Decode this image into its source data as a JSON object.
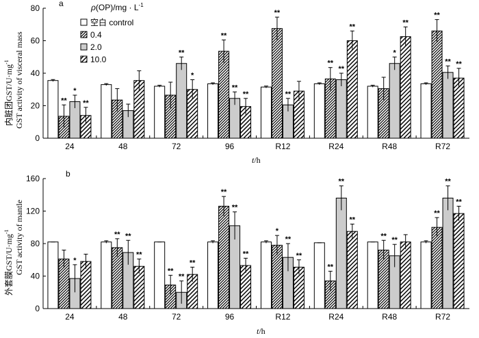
{
  "chart_data": [
    {
      "type": "bar",
      "panel_label": "a",
      "ylabel_cn": "内脏团GST/U·mg",
      "ylabel_cn_sup": "-1",
      "ylabel_en": "GST activity of visceral mass",
      "xlabel_italic": "t",
      "xlabel_rest": "/h",
      "categories": [
        "24",
        "48",
        "72",
        "96",
        "R12",
        "R24",
        "R48",
        "R72"
      ],
      "ylim": [
        0,
        80
      ],
      "yticks": [
        0,
        20,
        40,
        60,
        80
      ],
      "legend": {
        "title_rho": "ρ",
        "title_rest": "(OP)/mg · L",
        "title_sup": "-1",
        "placement": "top-left"
      },
      "series": [
        {
          "name": "空白 control",
          "pattern": "white",
          "values": [
            35.5,
            33.0,
            32.0,
            33.5,
            31.5,
            33.5,
            32.0,
            33.5
          ],
          "errors": [
            0.6,
            0.6,
            0.6,
            0.6,
            0.6,
            0.6,
            0.6,
            0.6
          ],
          "stars": [
            "",
            "",
            "",
            "",
            "",
            "",
            "",
            ""
          ]
        },
        {
          "name": "0.4",
          "pattern": "dense",
          "values": [
            13.5,
            23.5,
            26.5,
            53.5,
            67.5,
            36.5,
            30.5,
            66.0
          ],
          "errors": [
            7,
            7,
            8,
            7,
            7,
            7,
            7,
            7
          ],
          "stars": [
            "**",
            "",
            "",
            "**",
            "**",
            "**",
            "",
            "**"
          ]
        },
        {
          "name": "2.0",
          "pattern": "gray",
          "values": [
            22.5,
            17.0,
            46.0,
            24.5,
            20.5,
            36.0,
            46.0,
            40.5
          ],
          "errors": [
            4,
            4,
            4,
            4,
            4,
            4,
            4,
            4
          ],
          "stars": [
            "*",
            "",
            "**",
            "**",
            "**",
            "**",
            "*",
            "**"
          ]
        },
        {
          "name": "10.0",
          "pattern": "sparse",
          "values": [
            14.0,
            35.5,
            30.0,
            19.5,
            29.0,
            60.0,
            62.5,
            37.0
          ],
          "errors": [
            5,
            6,
            6,
            5,
            6,
            6,
            6,
            6
          ],
          "stars": [
            "**",
            "",
            "*",
            "**",
            "",
            "**",
            "**",
            "**"
          ]
        }
      ]
    },
    {
      "type": "bar",
      "panel_label": "b",
      "ylabel_cn": "外套膜GST/U·mg",
      "ylabel_cn_sup": "-1",
      "ylabel_en": "GST activity of mantle",
      "xlabel_italic": "t",
      "xlabel_rest": "/h",
      "categories": [
        "24",
        "48",
        "72",
        "96",
        "R12",
        "R24",
        "R48",
        "R72"
      ],
      "ylim": [
        0,
        160
      ],
      "yticks": [
        0,
        40,
        80,
        120,
        160
      ],
      "series": [
        {
          "name": "空白 control",
          "pattern": "white",
          "values": [
            82,
            82,
            82,
            82,
            82,
            81,
            82,
            82
          ],
          "errors": [
            0,
            1.5,
            0,
            1.5,
            1.5,
            0,
            0,
            1.5
          ],
          "stars": [
            "",
            "",
            "",
            "",
            "",
            "",
            "",
            ""
          ]
        },
        {
          "name": "0.4",
          "pattern": "dense",
          "values": [
            61,
            75,
            29,
            126,
            78,
            34,
            72,
            100
          ],
          "errors": [
            11,
            11,
            12,
            12,
            12,
            12,
            12,
            12
          ],
          "stars": [
            "",
            "**",
            "**",
            "**",
            "*",
            "**",
            "**",
            "**"
          ]
        },
        {
          "name": "2.0",
          "pattern": "gray",
          "values": [
            37,
            69,
            20,
            102,
            63,
            136,
            65,
            136
          ],
          "errors": [
            17,
            15,
            14,
            17,
            17,
            15,
            14,
            15
          ],
          "stars": [
            "*",
            "**",
            "**",
            "**",
            "**",
            "**",
            "**",
            "**"
          ]
        },
        {
          "name": "10.0",
          "pattern": "sparse",
          "values": [
            58,
            52,
            42,
            53,
            51,
            95,
            82,
            117
          ],
          "errors": [
            9,
            9,
            9,
            9,
            9,
            9,
            9,
            9
          ],
          "stars": [
            "",
            "**",
            "**",
            "**",
            "**",
            "**",
            "",
            "**"
          ]
        }
      ]
    }
  ]
}
